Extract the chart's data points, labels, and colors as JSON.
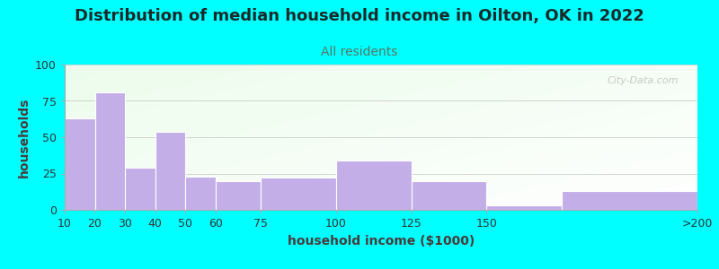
{
  "title": "Distribution of median household income in Oilton, OK in 2022",
  "subtitle": "All residents",
  "xlabel": "household income ($1000)",
  "ylabel": "households",
  "background_color": "#00FFFF",
  "bar_color": "#C4AEE8",
  "bar_edge_color": "#FFFFFF",
  "bin_edges": [
    10,
    20,
    30,
    40,
    50,
    60,
    75,
    100,
    125,
    150,
    175,
    220
  ],
  "values": [
    63,
    81,
    29,
    54,
    23,
    20,
    22,
    34,
    20,
    3,
    13
  ],
  "xtick_positions": [
    10,
    20,
    30,
    40,
    50,
    60,
    75,
    100,
    125,
    150,
    220
  ],
  "xtick_labels": [
    "10",
    "20",
    "30",
    "40",
    "50",
    "60",
    "75",
    "100",
    "125",
    "150",
    ">200"
  ],
  "ylim": [
    0,
    100
  ],
  "xlim": [
    10,
    220
  ],
  "yticks": [
    0,
    25,
    50,
    75,
    100
  ],
  "title_fontsize": 13,
  "subtitle_fontsize": 10,
  "axis_label_fontsize": 10,
  "tick_fontsize": 9,
  "watermark_text": "City-Data.com",
  "title_color": "#1a2a2a",
  "subtitle_color": "#557766",
  "label_color": "#4a3a3a"
}
